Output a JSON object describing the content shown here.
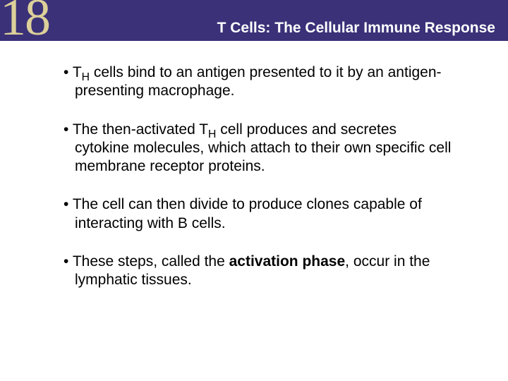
{
  "header": {
    "chapter_number": "18",
    "title": "T Cells: The Cellular Immune Response",
    "bar_color": "#3a3178",
    "number_color": "#dccf9a",
    "title_color": "#ffffff"
  },
  "bullets": [
    {
      "pre": "T",
      "sub": "H",
      "post": " cells bind to an antigen presented to it by an antigen-presenting macrophage."
    },
    {
      "pre": "The then-activated T",
      "sub": "H",
      "post": " cell produces and secretes cytokine molecules, which attach to their own specific cell membrane receptor proteins."
    },
    {
      "pre": "The cell can then divide to produce clones capable of interacting with B cells.",
      "sub": "",
      "post": ""
    },
    {
      "pre": "These steps, called the ",
      "bold": "activation phase",
      "post2": ", occur in the lymphatic tissues."
    }
  ],
  "text": {
    "font_size": 21,
    "color": "#000000"
  }
}
